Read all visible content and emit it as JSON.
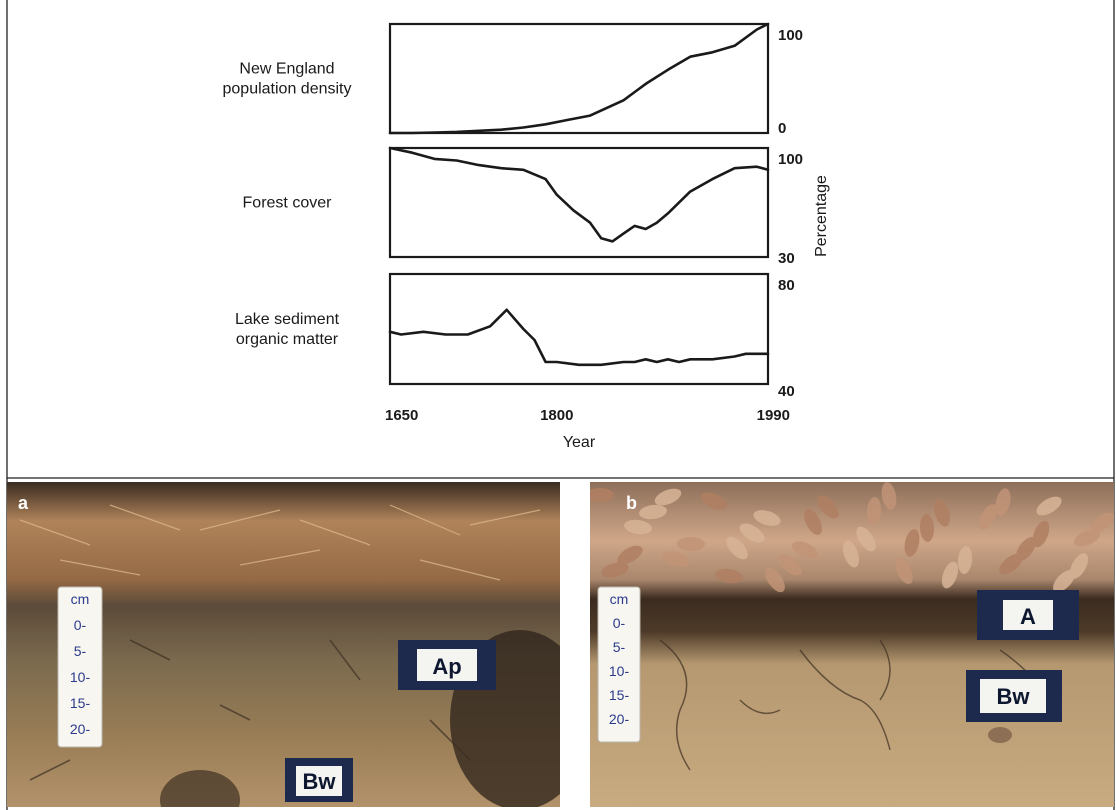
{
  "chart_data": {
    "type": "line",
    "xlabel": "Year",
    "x_tick_labels": [
      "1650",
      "1800",
      "1990"
    ],
    "x_range": [
      1650,
      1990
    ],
    "y_axis_title": "Percentage",
    "panels": [
      {
        "label_lines": [
          "New England",
          "population density"
        ],
        "y_range": [
          0,
          100
        ],
        "y_tick_labels": [
          "100",
          "0"
        ],
        "series": [
          {
            "x": [
              1650,
              1670,
              1690,
              1710,
              1730,
              1750,
              1770,
              1790,
              1810,
              1830,
              1845,
              1860,
              1880,
              1900,
              1920,
              1940,
              1960,
              1980,
              1990
            ],
            "y": [
              0,
              0,
              0.5,
              1,
              2,
              3,
              5,
              8,
              12,
              16,
              23,
              30,
              45,
              58,
              70,
              74,
              80,
              95,
              100
            ]
          }
        ]
      },
      {
        "label_lines": [
          "Forest cover"
        ],
        "y_range": [
          30,
          100
        ],
        "y_tick_labels": [
          "100",
          "30"
        ],
        "series": [
          {
            "x": [
              1650,
              1670,
              1690,
              1710,
              1730,
              1750,
              1770,
              1790,
              1800,
              1815,
              1830,
              1840,
              1850,
              1860,
              1870,
              1880,
              1890,
              1900,
              1920,
              1940,
              1960,
              1980,
              1990
            ],
            "y": [
              100,
              97,
              93,
              92,
              89,
              87,
              86,
              80,
              70,
              60,
              52,
              42,
              40,
              45,
              50,
              48,
              52,
              58,
              72,
              80,
              87,
              88,
              86
            ]
          }
        ]
      },
      {
        "label_lines": [
          "Lake sediment",
          "organic matter"
        ],
        "y_range": [
          40,
          80
        ],
        "y_tick_labels": [
          "80",
          "40"
        ],
        "series": [
          {
            "x": [
              1650,
              1660,
              1680,
              1700,
              1720,
              1740,
              1755,
              1770,
              1780,
              1790,
              1800,
              1820,
              1840,
              1860,
              1870,
              1880,
              1890,
              1900,
              1910,
              1920,
              1940,
              1960,
              1970,
              1980,
              1990
            ],
            "y": [
              59,
              58,
              59,
              58,
              58,
              61,
              67,
              60,
              56,
              48,
              48,
              47,
              47,
              48,
              48,
              49,
              48,
              49,
              48,
              49,
              49,
              50,
              51,
              51,
              51
            ]
          }
        ]
      }
    ]
  },
  "photos": [
    {
      "letter": "a",
      "ruler_marks": [
        "cm",
        "0-",
        "5-",
        "10-",
        "15-",
        "20-"
      ],
      "signs": [
        "Ap",
        "Bw"
      ],
      "colors": {
        "litter": "#a87a4c",
        "soil": "#7b6a4e",
        "subsoil": "#a98a5e",
        "shadow": "#2c2219"
      }
    },
    {
      "letter": "b",
      "ruler_marks": [
        "cm",
        "0-",
        "5-",
        "10-",
        "15-",
        "20-"
      ],
      "signs": [
        "A",
        "Bw"
      ],
      "colors": {
        "leaves": "#c9a182",
        "topsoil": "#3b2b1f",
        "subsoil": "#c4a67a",
        "shadow": "#5a4532"
      }
    }
  ]
}
